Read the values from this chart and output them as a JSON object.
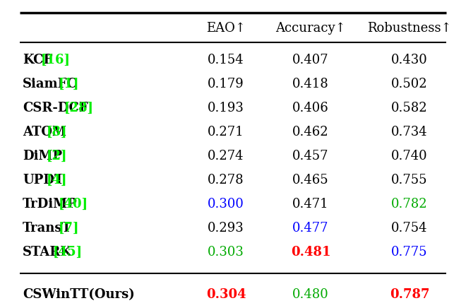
{
  "columns": [
    "EAO↑",
    "Accuracy↑",
    "Robustness↑"
  ],
  "rows": [
    {
      "method": "KCF",
      "ref": "16",
      "ref_color": "#00ee00",
      "eao": "0.154",
      "eao_color": "#000000",
      "eao_bold": false,
      "acc": "0.407",
      "acc_color": "#000000",
      "acc_bold": false,
      "rob": "0.430",
      "rob_color": "#000000",
      "rob_bold": false
    },
    {
      "method": "SiamFC",
      "ref": "1",
      "ref_color": "#00ee00",
      "eao": "0.179",
      "eao_color": "#000000",
      "eao_bold": false,
      "acc": "0.418",
      "acc_color": "#000000",
      "acc_bold": false,
      "rob": "0.502",
      "rob_color": "#000000",
      "rob_bold": false
    },
    {
      "method": "CSR-DCF",
      "ref": "28",
      "ref_color": "#00ee00",
      "eao": "0.193",
      "eao_color": "#000000",
      "eao_bold": false,
      "acc": "0.406",
      "acc_color": "#000000",
      "acc_bold": false,
      "rob": "0.582",
      "rob_color": "#000000",
      "rob_bold": false
    },
    {
      "method": "ATOM",
      "ref": "8",
      "ref_color": "#00ee00",
      "eao": "0.271",
      "eao_color": "#000000",
      "eao_bold": false,
      "acc": "0.462",
      "acc_color": "#000000",
      "acc_bold": false,
      "rob": "0.734",
      "rob_color": "#000000",
      "rob_bold": false
    },
    {
      "method": "DiMP",
      "ref": "2",
      "ref_color": "#00ee00",
      "eao": "0.274",
      "eao_color": "#000000",
      "eao_bold": false,
      "acc": "0.457",
      "acc_color": "#000000",
      "acc_bold": false,
      "rob": "0.740",
      "rob_color": "#000000",
      "rob_bold": false
    },
    {
      "method": "UPDT",
      "ref": "4",
      "ref_color": "#00ee00",
      "eao": "0.278",
      "eao_color": "#000000",
      "eao_bold": false,
      "acc": "0.465",
      "acc_color": "#000000",
      "acc_bold": false,
      "rob": "0.755",
      "rob_color": "#000000",
      "rob_bold": false
    },
    {
      "method": "TrDiMP",
      "ref": "40",
      "ref_color": "#00ee00",
      "eao": "0.300",
      "eao_color": "#0000ff",
      "eao_bold": false,
      "acc": "0.471",
      "acc_color": "#000000",
      "acc_bold": false,
      "rob": "0.782",
      "rob_color": "#00aa00",
      "rob_bold": false
    },
    {
      "method": "TransT",
      "ref": "7",
      "ref_color": "#00ee00",
      "eao": "0.293",
      "eao_color": "#000000",
      "eao_bold": false,
      "acc": "0.477",
      "acc_color": "#0000ff",
      "acc_bold": false,
      "rob": "0.754",
      "rob_color": "#000000",
      "rob_bold": false
    },
    {
      "method": "STARK",
      "ref": "45",
      "ref_color": "#00ee00",
      "eao": "0.303",
      "eao_color": "#00aa00",
      "eao_bold": false,
      "acc": "0.481",
      "acc_color": "#ff0000",
      "acc_bold": true,
      "rob": "0.775",
      "rob_color": "#0000ff",
      "rob_bold": false
    }
  ],
  "ours_row": {
    "method": "CSWinTT(Ours)",
    "eao": "0.304",
    "eao_color": "#ff0000",
    "eao_bold": true,
    "acc": "0.480",
    "acc_color": "#00aa00",
    "acc_bold": false,
    "rob": "0.787",
    "rob_color": "#ff0000",
    "rob_bold": true
  },
  "bg_color": "#ffffff",
  "fontsize": 13.0,
  "header_fontsize": 13.0
}
